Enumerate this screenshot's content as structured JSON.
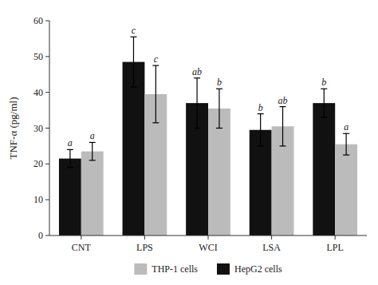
{
  "chart_data": {
    "type": "bar",
    "categories": [
      "CNT",
      "LPS",
      "WCI",
      "LSA",
      "LPL"
    ],
    "series": [
      {
        "name": "HepG2 cells",
        "color": "#111111",
        "values": [
          21.5,
          48.5,
          37.0,
          29.5,
          37.0
        ],
        "errors": [
          2.5,
          7.0,
          7.0,
          4.5,
          4.0
        ],
        "labels": [
          "a",
          "c",
          "ab",
          "b",
          "b"
        ]
      },
      {
        "name": "THP-1 cells",
        "color": "#bbbbbb",
        "values": [
          23.5,
          39.5,
          35.5,
          30.5,
          25.5
        ],
        "errors": [
          2.5,
          8.0,
          5.5,
          5.5,
          3.0
        ],
        "labels": [
          "a",
          "c",
          "b",
          "ab",
          "a"
        ]
      }
    ],
    "y_label": "TNF-α (pg/ml)",
    "ylim": [
      0,
      60
    ],
    "yticks": [
      0,
      10,
      20,
      30,
      40,
      50,
      60
    ],
    "grid": false,
    "legend": "bottom"
  }
}
